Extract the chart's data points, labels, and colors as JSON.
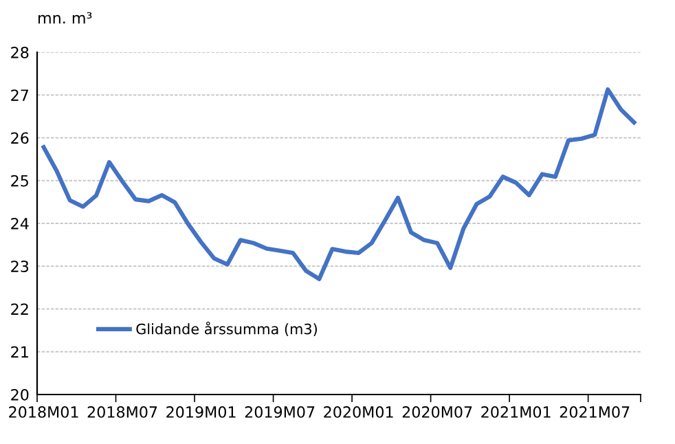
{
  "chart_data": {
    "type": "line",
    "ylabel": "mn. m³",
    "categories": [
      "2018M01",
      null,
      null,
      null,
      null,
      null,
      "2018M07",
      null,
      null,
      null,
      null,
      null,
      "2019M01",
      null,
      null,
      null,
      null,
      null,
      "2019M07",
      null,
      null,
      null,
      null,
      null,
      "2020M01",
      null,
      null,
      null,
      null,
      null,
      "2020M07",
      null,
      null,
      null,
      null,
      null,
      "2021M01",
      null,
      null,
      null,
      null,
      null,
      "2021M07",
      null,
      null,
      null
    ],
    "series": [
      {
        "name": "Glidande årssumma (m3)",
        "color": "#4472c4",
        "values": [
          25.78,
          25.22,
          24.54,
          24.39,
          24.65,
          25.43,
          24.98,
          24.56,
          24.52,
          24.66,
          24.49,
          23.99,
          23.56,
          23.18,
          23.04,
          23.61,
          23.54,
          23.41,
          23.36,
          23.31,
          22.89,
          22.7,
          23.4,
          23.34,
          23.31,
          23.54,
          24.06,
          24.6,
          23.79,
          23.61,
          23.54,
          22.96,
          23.88,
          24.45,
          24.63,
          25.09,
          24.95,
          24.66,
          25.15,
          25.09,
          25.94,
          25.98,
          26.07,
          27.13,
          26.66,
          26.36
        ]
      }
    ],
    "ylim": [
      20,
      28
    ],
    "yticks": [
      20,
      21,
      22,
      23,
      24,
      25,
      26,
      27,
      28
    ],
    "grid": "y",
    "legend": "bottom left",
    "marker": "none",
    "line_style": "solid"
  }
}
